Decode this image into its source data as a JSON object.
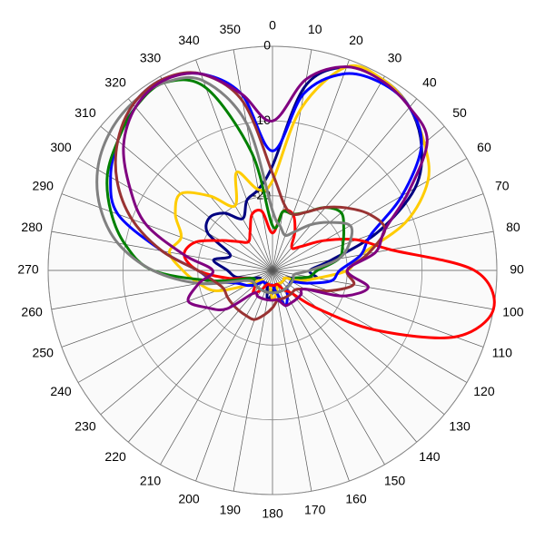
{
  "chart_data": {
    "type": "polar",
    "theta": [
      0,
      10,
      20,
      30,
      40,
      50,
      60,
      70,
      80,
      90,
      100,
      110,
      120,
      130,
      140,
      150,
      160,
      170,
      180,
      190,
      200,
      210,
      220,
      230,
      240,
      250,
      260,
      270,
      280,
      290,
      300,
      310,
      320,
      330,
      340,
      350
    ],
    "rlim": [
      -30,
      0
    ],
    "rticks": [
      -20,
      -10,
      0
    ],
    "grid": true,
    "series": [
      {
        "color": "#000080",
        "values": [
          -16,
          -5,
          -1,
          -0.5,
          -1.5,
          -4,
          -8,
          -15,
          -22,
          -25,
          -24,
          -27,
          -28,
          -28,
          -28,
          -28,
          -28,
          -28,
          -27,
          -26,
          -28,
          -28,
          -28,
          -28,
          -28,
          -27,
          -25,
          -24,
          -22,
          -24,
          -20,
          -19,
          -20,
          -22,
          -20,
          -19
        ]
      },
      {
        "color": "#ffcc00",
        "values": [
          -18,
          -8,
          -1,
          -0.5,
          -1.5,
          -3.5,
          -6,
          -11,
          -18,
          -20,
          -24,
          -26,
          -28,
          -28,
          -28,
          -28,
          -28,
          -27,
          -26,
          -28,
          -28,
          -28,
          -28,
          -28,
          -26,
          -22,
          -20,
          -18,
          -16,
          -17,
          -15,
          -14,
          -17,
          -20,
          -16,
          -19
        ]
      },
      {
        "color": "#0000ff",
        "values": [
          -14,
          -6,
          -2,
          -1,
          -1.5,
          -4,
          -10,
          -16,
          -18,
          -21,
          -22,
          -25,
          -27,
          -27,
          -27,
          -26,
          -25,
          -27,
          -28,
          -28,
          -28,
          -28,
          -28,
          -27,
          -26,
          -25,
          -22,
          -20,
          -15,
          -8,
          -5,
          -3,
          -1,
          -0.5,
          -2,
          -6
        ]
      },
      {
        "color": "#ff0000",
        "values": [
          -25,
          -22,
          -22,
          -24,
          -26,
          -25,
          -22,
          -18,
          -14,
          -3,
          0,
          -4,
          -14,
          -22,
          -26,
          -27,
          -28,
          -28,
          -28,
          -28,
          -28,
          -27,
          -26,
          -27,
          -27,
          -27,
          -24,
          -20,
          -18,
          -19,
          -22,
          -24,
          -25,
          -24,
          -22,
          -22
        ]
      },
      {
        "color": "#008000",
        "values": [
          -24,
          -22,
          -22,
          -21,
          -19,
          -18,
          -19,
          -20,
          -21,
          -24,
          -25,
          -27,
          -27,
          -27,
          -27,
          -27,
          -27,
          -27,
          -27,
          -27,
          -27,
          -27,
          -27,
          -27,
          -27,
          -27,
          -22,
          -14,
          -10,
          -7,
          -4.5,
          -3,
          -1.5,
          -1,
          -4,
          -14
        ]
      },
      {
        "color": "#808080",
        "values": [
          -22,
          -24,
          -25,
          -24,
          -22,
          -20,
          -18,
          -19,
          -21,
          -25,
          -27,
          -27,
          -27,
          -27,
          -27,
          -27,
          -27,
          -27,
          -27,
          -27,
          -27,
          -27,
          -27,
          -27,
          -27,
          -26,
          -20,
          -14,
          -9,
          -5.5,
          -3,
          -1.5,
          -0.8,
          -1,
          -3,
          -10
        ]
      },
      {
        "color": "#993333",
        "values": [
          -17,
          -21,
          -22,
          -21,
          -19,
          -17,
          -15,
          -14,
          -17,
          -20,
          -19,
          -22,
          -25,
          -26,
          -26,
          -26,
          -26,
          -26,
          -25,
          -24,
          -23,
          -23,
          -23,
          -23,
          -23,
          -23,
          -22,
          -20,
          -15,
          -10,
          -6,
          -3,
          -1,
          -0.5,
          -2,
          -7
        ]
      },
      {
        "color": "#800080",
        "values": [
          -10,
          -4,
          -1,
          -0.7,
          -1.5,
          -3,
          -9,
          -14,
          -16,
          -20,
          -17,
          -20,
          -25,
          -25,
          -25,
          -25,
          -25,
          -26,
          -26,
          -26,
          -26,
          -26,
          -26,
          -22,
          -20,
          -18,
          -20,
          -22,
          -18,
          -12,
          -8,
          -4,
          -1.5,
          -0.7,
          -2,
          -6
        ]
      }
    ]
  }
}
